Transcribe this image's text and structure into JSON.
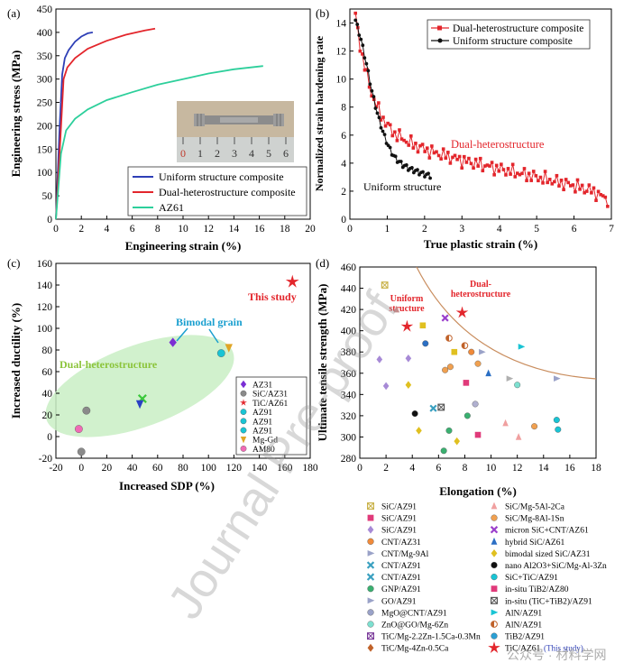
{
  "colors": {
    "blue": "#2e3fb6",
    "red": "#e3262c",
    "teal": "#2dcf9b",
    "black": "#111111",
    "green_ellipse": "#c9efc4",
    "curve_d": "#c98d5e"
  },
  "panel_a": {
    "label": "(a)",
    "xlabel": "Engineering strain (%)",
    "ylabel": "Engineering stress (MPa)",
    "xlim": [
      0,
      20
    ],
    "ylim": [
      0,
      450
    ],
    "xticks": [
      0,
      2,
      4,
      6,
      8,
      10,
      12,
      14,
      16,
      18,
      20
    ],
    "yticks": [
      0,
      50,
      100,
      150,
      200,
      250,
      300,
      350,
      400,
      450
    ],
    "legend": [
      "Uniform structure composite",
      "Dual-heterostructure composite",
      "AZ61"
    ],
    "series": [
      {
        "name": "Uniform structure composite",
        "color": "#2e3fb6",
        "x": [
          0,
          0.3,
          0.5,
          0.7,
          1.0,
          1.5,
          2.0,
          2.5,
          2.9
        ],
        "y": [
          0,
          200,
          310,
          345,
          362,
          380,
          391,
          398,
          400
        ]
      },
      {
        "name": "Dual-heterostructure composite",
        "color": "#e3262c",
        "x": [
          0,
          0.35,
          0.6,
          0.9,
          1.5,
          2.5,
          4,
          5.5,
          7,
          7.8
        ],
        "y": [
          0,
          170,
          300,
          325,
          345,
          365,
          382,
          395,
          404,
          408
        ]
      },
      {
        "name": "AZ61",
        "color": "#2dcf9b",
        "x": [
          0,
          0.4,
          0.8,
          1.5,
          2.5,
          4,
          6,
          8,
          10,
          12,
          14,
          16.3
        ],
        "y": [
          0,
          140,
          190,
          215,
          235,
          255,
          272,
          288,
          300,
          312,
          321,
          328
        ]
      }
    ],
    "ruler_digits": [
      "0",
      "1",
      "2",
      "3",
      "4",
      "5",
      "6"
    ]
  },
  "panel_b": {
    "label": "(b)",
    "xlabel": "True plastic strain (%)",
    "ylabel": "Normalized strain hardening rate",
    "xlim": [
      0,
      7
    ],
    "ylim": [
      0,
      15
    ],
    "xticks": [
      0,
      1,
      2,
      3,
      4,
      5,
      6,
      7
    ],
    "yticks": [
      0,
      2,
      4,
      6,
      8,
      10,
      12,
      14
    ],
    "legend": [
      "Dual-heterostructure composite",
      "Uniform structure composite"
    ],
    "annot_dual": "Dual-heterostructure",
    "annot_uniform": "Uniform structure",
    "series": [
      {
        "name": "Dual-heterostructure composite",
        "color": "#e3262c",
        "x": [
          0.15,
          0.3,
          0.45,
          0.6,
          0.8,
          1.0,
          1.2,
          1.5,
          1.8,
          2.2,
          2.6,
          3.0,
          3.5,
          4.0,
          4.5,
          5.0,
          5.5,
          6.0,
          6.5,
          6.9
        ],
        "y": [
          14.5,
          12.0,
          10.3,
          8.8,
          7.6,
          6.7,
          6.1,
          5.6,
          5.2,
          4.8,
          4.5,
          4.2,
          3.9,
          3.6,
          3.3,
          3.0,
          2.7,
          2.4,
          2.0,
          1.4
        ]
      },
      {
        "name": "Uniform structure composite",
        "color": "#111111",
        "x": [
          0.15,
          0.3,
          0.45,
          0.6,
          0.75,
          0.9,
          1.05,
          1.2,
          1.4,
          1.6,
          1.8,
          2.0,
          2.15
        ],
        "y": [
          14.2,
          12.8,
          11.0,
          9.0,
          7.4,
          6.1,
          5.1,
          4.4,
          3.9,
          3.6,
          3.4,
          3.2,
          3.1
        ]
      }
    ]
  },
  "panel_c": {
    "label": "(c)",
    "xlabel": "Increased  SDP (%)",
    "ylabel": "Increased ductility (%)",
    "xlim": [
      -20,
      180
    ],
    "ylim": [
      -20,
      160
    ],
    "xticks": [
      -20,
      0,
      20,
      40,
      60,
      80,
      100,
      120,
      140,
      160,
      180
    ],
    "yticks": [
      -20,
      0,
      20,
      40,
      60,
      80,
      100,
      120,
      140,
      160
    ],
    "annot_this": "This study",
    "annot_bimodal": "Bimodal grain",
    "annot_dual": "Dual-heterostructure",
    "legend": [
      "AZ31",
      "SiC/AZ31",
      "TiC/AZ61",
      "AZ91",
      "AZ91",
      "AZ91",
      "Mg-Gd",
      "AM80"
    ],
    "points": [
      {
        "name": "AZ31",
        "x": 72,
        "y": 87,
        "shape": "diamond",
        "color": "#7b2fd4"
      },
      {
        "name": "SiC/AZ31",
        "x": 4,
        "y": 24,
        "shape": "circle",
        "color": "#8a8a8a"
      },
      {
        "name": "SiC/AZ31",
        "x": 0,
        "y": -14,
        "shape": "circle",
        "color": "#8a8a8a"
      },
      {
        "name": "TiC/AZ61",
        "x": 166,
        "y": 143,
        "shape": "star",
        "color": "#e3262c"
      },
      {
        "name": "AZ91",
        "x": 110,
        "y": 77,
        "shape": "circle",
        "color": "#19c4d4"
      },
      {
        "name": "AZ91",
        "x": 48,
        "y": 35,
        "shape": "cross",
        "color": "#3ac83a"
      },
      {
        "name": "AZ91",
        "x": 46,
        "y": 30,
        "shape": "tri-down",
        "color": "#2b3fc4"
      },
      {
        "name": "Mg-Gd",
        "x": 116,
        "y": 82,
        "shape": "tri-down",
        "color": "#e0a526"
      },
      {
        "name": "AM80",
        "x": -2,
        "y": 7,
        "shape": "circle",
        "color": "#f06ab5"
      }
    ]
  },
  "panel_d": {
    "label": "(d)",
    "xlabel": "Elongation (%)",
    "ylabel": "Ultimate tensile strength (MPa)",
    "xlim": [
      0,
      18
    ],
    "ylim": [
      280,
      460
    ],
    "xticks": [
      0,
      2,
      4,
      6,
      8,
      10,
      12,
      14,
      16,
      18
    ],
    "yticks": [
      280,
      300,
      320,
      340,
      360,
      380,
      400,
      420,
      440,
      460
    ],
    "annot_uniform": "Uniform\nstructure",
    "annot_dual": "Dual-\nheterostructure",
    "points": [
      {
        "x": 1.9,
        "y": 443,
        "shape": "xsquare",
        "color": "#c9b24a"
      },
      {
        "x": 2.8,
        "y": 420,
        "shape": "tri-up",
        "color": "#c58a8a"
      },
      {
        "x": 6.5,
        "y": 412,
        "shape": "cross",
        "color": "#9b3fcc"
      },
      {
        "x": 4.8,
        "y": 405,
        "shape": "square",
        "color": "#e0c020"
      },
      {
        "x": 6.8,
        "y": 393,
        "shape": "half",
        "color": "#c0622a"
      },
      {
        "x": 8.0,
        "y": 386,
        "shape": "half",
        "color": "#c0622a"
      },
      {
        "x": 5.0,
        "y": 388,
        "shape": "circle",
        "color": "#2b6fc4"
      },
      {
        "x": 7.2,
        "y": 380,
        "shape": "square",
        "color": "#e0c020"
      },
      {
        "x": 8.5,
        "y": 380,
        "shape": "circle",
        "color": "#f08a3a"
      },
      {
        "x": 9.3,
        "y": 380,
        "shape": "tri-right",
        "color": "#9aa2c8"
      },
      {
        "x": 12.3,
        "y": 385,
        "shape": "tri-right",
        "color": "#19c4d4"
      },
      {
        "x": 1.5,
        "y": 373,
        "shape": "diamond",
        "color": "#a78ad6"
      },
      {
        "x": 3.7,
        "y": 374,
        "shape": "diamond",
        "color": "#a78ad6"
      },
      {
        "x": 6.5,
        "y": 363,
        "shape": "circle",
        "color": "#f0a050"
      },
      {
        "x": 6.9,
        "y": 366,
        "shape": "circle",
        "color": "#f0a050"
      },
      {
        "x": 9.0,
        "y": 369,
        "shape": "circle",
        "color": "#f0a050"
      },
      {
        "x": 9.8,
        "y": 360,
        "shape": "tri-up",
        "color": "#2b6fc4"
      },
      {
        "x": 11.4,
        "y": 355,
        "shape": "tri-right",
        "color": "#b0b0b0"
      },
      {
        "x": 15.0,
        "y": 355,
        "shape": "tri-right",
        "color": "#9aa2c8"
      },
      {
        "x": 2.0,
        "y": 348,
        "shape": "diamond",
        "color": "#a78ad6"
      },
      {
        "x": 3.7,
        "y": 349,
        "shape": "diamond",
        "color": "#e0c020"
      },
      {
        "x": 8.1,
        "y": 351,
        "shape": "square",
        "color": "#e03a7a"
      },
      {
        "x": 12.0,
        "y": 349,
        "shape": "circle",
        "color": "#7de0d0"
      },
      {
        "x": 8.8,
        "y": 331,
        "shape": "circle",
        "color": "#b0b0d0"
      },
      {
        "x": 5.6,
        "y": 327,
        "shape": "cross",
        "color": "#3aa0c0"
      },
      {
        "x": 6.2,
        "y": 328,
        "shape": "xsquare",
        "color": "#555555"
      },
      {
        "x": 4.2,
        "y": 322,
        "shape": "circle",
        "color": "#111111"
      },
      {
        "x": 8.2,
        "y": 320,
        "shape": "circle",
        "color": "#3ab070"
      },
      {
        "x": 11.1,
        "y": 313,
        "shape": "tri-up",
        "color": "#f0a0a0"
      },
      {
        "x": 13.3,
        "y": 310,
        "shape": "circle",
        "color": "#f0a050"
      },
      {
        "x": 4.5,
        "y": 306,
        "shape": "diamond",
        "color": "#e0c020"
      },
      {
        "x": 6.8,
        "y": 306,
        "shape": "circle",
        "color": "#3ab070"
      },
      {
        "x": 9.0,
        "y": 302,
        "shape": "square",
        "color": "#e03a7a"
      },
      {
        "x": 12.1,
        "y": 300,
        "shape": "tri-up",
        "color": "#f0a0a0"
      },
      {
        "x": 15.0,
        "y": 316,
        "shape": "circle",
        "color": "#19c4d4"
      },
      {
        "x": 15.1,
        "y": 307,
        "shape": "circle",
        "color": "#19c4d4"
      },
      {
        "x": 7.4,
        "y": 296,
        "shape": "diamond",
        "color": "#e0c020"
      },
      {
        "x": 6.4,
        "y": 287,
        "shape": "circle",
        "color": "#3ab070"
      },
      {
        "x": 3.6,
        "y": 404,
        "shape": "star",
        "color": "#e3262c"
      },
      {
        "x": 7.8,
        "y": 417,
        "shape": "star",
        "color": "#e3262c"
      }
    ],
    "legend_left": [
      "SiC/AZ91",
      "SiC/AZ91",
      "SiC/AZ91",
      "CNT/AZ31",
      "CNT/Mg-9Al",
      "CNT/AZ91",
      "CNT/AZ91",
      "GNP/AZ91",
      "GO/AZ91",
      "MgO@CNT/AZ91",
      "ZnO@GO/Mg-6Zn",
      "TiC/Mg-2.2Zn-1.5Ca-0.3Mn",
      "TiC/Mg-4Zn-0.5Ca"
    ],
    "legend_right": [
      "SiC/Mg-5Al-2Ca",
      "SiC/Mg-8Al-1Sn",
      "micron SiC+CNT/AZ61",
      "hybrid SiC/AZ61",
      "bimodal sized SiC/AZ31",
      "nano Al2O3+SiC/Mg-Al-3Zn",
      "SiC+TiC/AZ91",
      "in-situ TiB2/AZ80",
      "in-situ (TiC+TiB2)/AZ91",
      "AlN/AZ91",
      "AlN/AZ91",
      "TiB2/AZ91",
      "TiC/AZ61"
    ],
    "this_study": "(This study)"
  },
  "watermark": "Journal Pre-proof",
  "wechat_mark": "公众号 · 材料学网"
}
